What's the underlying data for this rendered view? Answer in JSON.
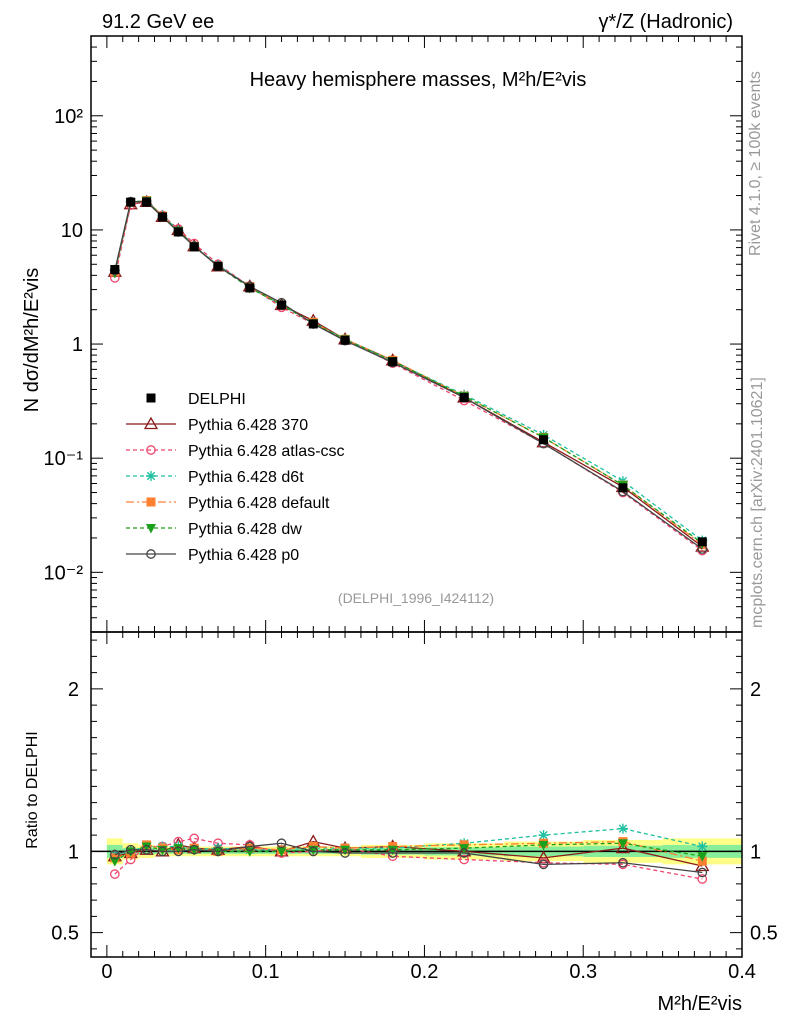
{
  "header": {
    "left": "91.2 GeV ee",
    "right": "γ*/Z (Hadronic)"
  },
  "side_labels": {
    "rivet": "Rivet 4.1.0, ≥ 100k events",
    "mcplots": "mcplots.cern.ch [arXiv:2401.10621]"
  },
  "chart_data": [
    {
      "type": "line",
      "title": "Heavy hemisphere masses, M²h/E²vis",
      "ylabel": "N  dσ/dM²h/E²vis",
      "yscale": "log",
      "ylim": [
        0.003,
        500
      ],
      "xlim": [
        -0.01,
        0.4
      ],
      "watermark": "(DELPHI_1996_I424112)",
      "ytick_values": [
        0.01,
        0.1,
        1,
        10,
        100
      ],
      "ytick_labels": [
        "10⁻²",
        "10⁻¹",
        "1",
        "10",
        "10²"
      ],
      "x": [
        0.005,
        0.015,
        0.025,
        0.035,
        0.045,
        0.055,
        0.07,
        0.09,
        0.11,
        0.13,
        0.15,
        0.18,
        0.225,
        0.275,
        0.325,
        0.375
      ],
      "series": [
        {
          "name": "DELPHI",
          "color": "#000000",
          "marker": "square-filled",
          "dash": "none",
          "values": [
            4.5,
            17.5,
            17.5,
            13.0,
            9.6,
            7.1,
            4.8,
            3.1,
            2.2,
            1.5,
            1.08,
            0.7,
            0.34,
            0.145,
            0.055,
            0.0185
          ]
        },
        {
          "name": "Pythia 6.428 370",
          "color": "#8b1a1a",
          "marker": "triangle-open",
          "dash": "none",
          "values": [
            4.3,
            16.8,
            17.6,
            13.0,
            10.0,
            7.2,
            4.8,
            3.2,
            2.2,
            1.6,
            1.1,
            0.72,
            0.34,
            0.138,
            0.056,
            0.0168
          ]
        },
        {
          "name": "Pythia 6.428 atlas-csc",
          "color": "#ef476f",
          "marker": "circle-open",
          "dash": "4,3",
          "values": [
            3.8,
            16.5,
            18.0,
            13.4,
            10.2,
            7.6,
            5.0,
            3.2,
            2.1,
            1.5,
            1.1,
            0.68,
            0.32,
            0.135,
            0.05,
            0.0155
          ]
        },
        {
          "name": "Pythia 6.428 d6t",
          "color": "#20c0a0",
          "marker": "star",
          "dash": "4,3",
          "values": [
            4.4,
            17.6,
            18.0,
            13.4,
            9.9,
            7.2,
            4.9,
            3.2,
            2.2,
            1.55,
            1.1,
            0.71,
            0.36,
            0.16,
            0.063,
            0.019
          ]
        },
        {
          "name": "Pythia 6.428 default",
          "color": "#ff8030",
          "marker": "square-filled",
          "dash": "8,3,2,3",
          "values": [
            4.3,
            17.4,
            18.1,
            13.2,
            9.7,
            7.2,
            4.8,
            3.2,
            2.2,
            1.55,
            1.1,
            0.72,
            0.35,
            0.152,
            0.058,
            0.0175
          ]
        },
        {
          "name": "Pythia 6.428 dw",
          "color": "#1aa01a",
          "marker": "triangle-down-filled",
          "dash": "4,3",
          "values": [
            4.2,
            17.5,
            18.0,
            13.1,
            9.8,
            7.2,
            4.8,
            3.1,
            2.2,
            1.52,
            1.1,
            0.71,
            0.35,
            0.152,
            0.058,
            0.018
          ]
        },
        {
          "name": "Pythia 6.428 p0",
          "color": "#444444",
          "marker": "circle-open",
          "dash": "none",
          "values": [
            4.4,
            17.7,
            17.7,
            13.0,
            9.6,
            7.2,
            4.8,
            3.2,
            2.3,
            1.5,
            1.07,
            0.69,
            0.34,
            0.134,
            0.051,
            0.016
          ]
        }
      ]
    },
    {
      "type": "line",
      "ylabel": "Ratio to DELPHI",
      "xlabel": "M²h/E²vis",
      "ylim": [
        0.35,
        2.35
      ],
      "xlim": [
        -0.01,
        0.4
      ],
      "ytick_values": [
        0.5,
        1,
        2
      ],
      "ytick_labels": [
        "0.5",
        "1",
        "2"
      ],
      "xtick_values": [
        0,
        0.1,
        0.2,
        0.3,
        0.4
      ],
      "xtick_labels": [
        "0",
        "0.1",
        "0.2",
        "0.3",
        "0.4"
      ],
      "x": [
        0.005,
        0.015,
        0.025,
        0.035,
        0.045,
        0.055,
        0.07,
        0.09,
        0.11,
        0.13,
        0.15,
        0.18,
        0.225,
        0.275,
        0.325,
        0.375
      ],
      "band_bins": [
        [
          0.0,
          0.01
        ],
        [
          0.01,
          0.02
        ],
        [
          0.02,
          0.03
        ],
        [
          0.03,
          0.04
        ],
        [
          0.04,
          0.05
        ],
        [
          0.05,
          0.06
        ],
        [
          0.06,
          0.08
        ],
        [
          0.08,
          0.1
        ],
        [
          0.1,
          0.12
        ],
        [
          0.12,
          0.14
        ],
        [
          0.14,
          0.16
        ],
        [
          0.16,
          0.2
        ],
        [
          0.2,
          0.25
        ],
        [
          0.25,
          0.3
        ],
        [
          0.3,
          0.35
        ],
        [
          0.35,
          0.4
        ]
      ],
      "band_outer": [
        0.08,
        0.05,
        0.04,
        0.03,
        0.03,
        0.03,
        0.03,
        0.03,
        0.03,
        0.03,
        0.03,
        0.04,
        0.05,
        0.06,
        0.07,
        0.08
      ],
      "band_inner": [
        0.04,
        0.02,
        0.02,
        0.015,
        0.015,
        0.015,
        0.015,
        0.015,
        0.015,
        0.015,
        0.015,
        0.02,
        0.025,
        0.03,
        0.035,
        0.04
      ],
      "series": [
        {
          "name": "Pythia 6.428 370",
          "values": [
            0.97,
            0.99,
            1.01,
            1.0,
            1.04,
            1.02,
            1.01,
            1.03,
            1.0,
            1.06,
            1.02,
            1.03,
            1.0,
            0.96,
            1.02,
            0.91
          ]
        },
        {
          "name": "Pythia 6.428 atlas-csc",
          "values": [
            0.86,
            0.95,
            1.03,
            1.03,
            1.06,
            1.08,
            1.05,
            1.04,
            0.99,
            1.0,
            1.02,
            0.97,
            0.95,
            0.93,
            0.92,
            0.83
          ]
        },
        {
          "name": "Pythia 6.428 d6t",
          "values": [
            0.98,
            1.0,
            1.03,
            1.03,
            1.03,
            1.01,
            1.02,
            1.01,
            1.01,
            1.02,
            1.02,
            1.02,
            1.05,
            1.1,
            1.14,
            1.03
          ]
        },
        {
          "name": "Pythia 6.428 default",
          "values": [
            0.96,
            0.99,
            1.04,
            1.02,
            1.01,
            1.02,
            1.0,
            1.02,
            1.01,
            1.03,
            1.02,
            1.03,
            1.04,
            1.05,
            1.06,
            0.94
          ]
        },
        {
          "name": "Pythia 6.428 dw",
          "values": [
            0.94,
            1.0,
            1.03,
            1.01,
            1.02,
            1.01,
            1.0,
            1.0,
            1.0,
            1.01,
            1.01,
            1.01,
            1.02,
            1.04,
            1.05,
            0.97
          ]
        },
        {
          "name": "Pythia 6.428 p0",
          "values": [
            0.98,
            1.01,
            1.01,
            1.0,
            1.0,
            1.01,
            1.0,
            1.03,
            1.05,
            1.0,
            0.99,
            0.99,
            0.99,
            0.92,
            0.93,
            0.87
          ]
        }
      ]
    }
  ]
}
